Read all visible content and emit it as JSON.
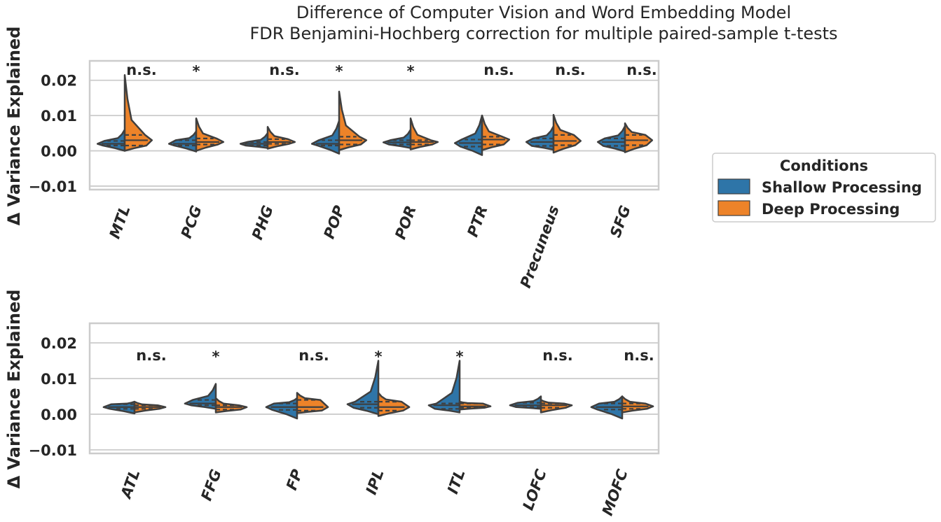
{
  "title_lines": [
    "Difference of Computer Vision and Word Embedding Model",
    "FDR Benjamini-Hochberg correction for multiple paired-sample t-tests"
  ],
  "legend": {
    "title": "Conditions",
    "entries": [
      {
        "label": "Shallow Processing",
        "color": "#2e75a8"
      },
      {
        "label": "Deep Processing",
        "color": "#ed8329"
      }
    ],
    "placement": "right"
  },
  "chart_data": [
    {
      "type": "violin",
      "subtype": "split",
      "title": "",
      "xlabel": "",
      "ylabel": "Δ Variance Explained",
      "ylim": [
        -0.011,
        0.0255
      ],
      "yticks": [
        -0.01,
        0.0,
        0.01,
        0.02
      ],
      "ytick_labels": [
        "−0.01",
        "0.00",
        "0.01",
        "0.02"
      ],
      "grid": true,
      "categories": [
        "MTL",
        "PCG",
        "PHG",
        "POP",
        "POR",
        "PTR",
        "Precuneus",
        "SFG"
      ],
      "significance": [
        "n.s.",
        "*",
        "n.s.",
        "*",
        "*",
        "n.s.",
        "n.s.",
        "n.s."
      ],
      "series": [
        {
          "name": "Shallow Processing",
          "color": "#2e75a8",
          "min": [
            0.0,
            -0.0002,
            0.0008,
            -0.0008,
            0.0008,
            -0.0012,
            0.0003,
            -0.0002
          ],
          "q1": [
            0.0015,
            0.0015,
            0.0015,
            0.0015,
            0.0018,
            0.0012,
            0.0014,
            0.0014
          ],
          "median": [
            0.002,
            0.002,
            0.002,
            0.002,
            0.0024,
            0.0022,
            0.0025,
            0.0025
          ],
          "q3": [
            0.0028,
            0.003,
            0.0025,
            0.003,
            0.003,
            0.0032,
            0.0035,
            0.0035
          ],
          "max": [
            0.006,
            0.0055,
            0.005,
            0.0085,
            0.006,
            0.01,
            0.007,
            0.007
          ]
        },
        {
          "name": "Deep Processing",
          "color": "#ed8329",
          "min": [
            0.0,
            0.0,
            0.0006,
            0.0002,
            0.0004,
            0.0002,
            -0.0005,
            -0.0004
          ],
          "q1": [
            0.0015,
            0.0018,
            0.002,
            0.0018,
            0.0018,
            0.0018,
            0.0016,
            0.0016
          ],
          "median": [
            0.003,
            0.0025,
            0.0025,
            0.003,
            0.0025,
            0.0032,
            0.0028,
            0.003
          ],
          "q3": [
            0.0045,
            0.0035,
            0.0033,
            0.004,
            0.003,
            0.004,
            0.0045,
            0.0045
          ],
          "max": [
            0.0215,
            0.0092,
            0.0068,
            0.0168,
            0.0092,
            0.01,
            0.0102,
            0.0078
          ]
        }
      ]
    },
    {
      "type": "violin",
      "subtype": "split",
      "title": "",
      "xlabel": "",
      "ylabel": "Δ Variance Explained",
      "ylim": [
        -0.011,
        0.0255
      ],
      "yticks": [
        -0.01,
        0.0,
        0.01,
        0.02
      ],
      "ytick_labels": [
        "−0.01",
        "0.00",
        "0.01",
        "0.02"
      ],
      "grid": true,
      "categories": [
        "ATL",
        "FFG",
        "FP",
        "IPL",
        "ITL",
        "LOFC",
        "MOFC"
      ],
      "significance": [
        "n.s.",
        "*",
        "n.s.",
        "*",
        "*",
        "n.s.",
        "n.s."
      ],
      "series": [
        {
          "name": "Shallow Processing",
          "color": "#2e75a8",
          "min": [
            0.0002,
            0.0015,
            -0.0012,
            0.0,
            0.0005,
            0.0015,
            -0.0012
          ],
          "q1": [
            0.0015,
            0.0025,
            0.0012,
            0.0018,
            0.0015,
            0.002,
            0.0013
          ],
          "median": [
            0.002,
            0.003,
            0.002,
            0.0028,
            0.0025,
            0.0025,
            0.002
          ],
          "q3": [
            0.0028,
            0.004,
            0.003,
            0.0035,
            0.003,
            0.0032,
            0.003
          ],
          "max": [
            0.0035,
            0.0085,
            0.0045,
            0.015,
            0.015,
            0.005,
            0.005
          ]
        },
        {
          "name": "Deep Processing",
          "color": "#ed8329",
          "min": [
            0.0005,
            0.0005,
            0.0003,
            -0.0005,
            0.0013,
            0.0005,
            0.0005
          ],
          "q1": [
            0.0015,
            0.0013,
            0.001,
            0.001,
            0.0018,
            0.0018,
            0.0015
          ],
          "median": [
            0.002,
            0.002,
            0.002,
            0.002,
            0.0022,
            0.0025,
            0.0022
          ],
          "q3": [
            0.0025,
            0.0025,
            0.004,
            0.0035,
            0.003,
            0.003,
            0.003
          ],
          "max": [
            0.0035,
            0.0045,
            0.006,
            0.006,
            0.0035,
            0.004,
            0.005
          ]
        }
      ]
    }
  ]
}
